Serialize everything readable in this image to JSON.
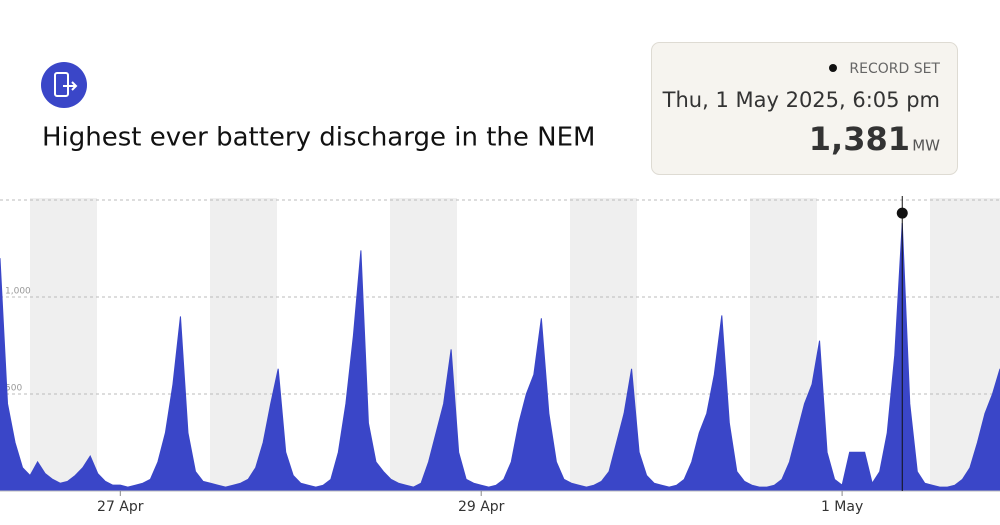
{
  "header": {
    "title": "Highest ever battery discharge in the NEM"
  },
  "card": {
    "label": "RECORD SET",
    "datetime": "Thu, 1 May 2025, 6:05 pm",
    "value": "1,381",
    "unit": "MW"
  },
  "chart_data": {
    "type": "area",
    "color": "#3a46c8",
    "x": [
      0,
      1,
      2,
      3,
      4,
      5,
      6,
      7,
      8,
      9,
      10,
      11,
      12,
      13,
      14,
      15,
      16,
      17,
      18,
      19,
      20,
      21,
      22,
      23,
      24,
      25,
      26,
      27,
      28,
      29,
      30,
      31,
      32,
      33,
      34,
      35,
      36,
      37,
      38,
      39,
      40,
      41,
      42,
      43,
      44,
      45,
      46,
      47,
      48,
      49,
      50,
      51,
      52,
      53,
      54,
      55,
      56,
      57,
      58,
      59,
      60,
      61,
      62,
      63,
      64,
      65,
      66,
      67,
      68,
      69,
      70,
      71,
      72,
      73,
      74,
      75,
      76,
      77,
      78,
      79,
      80,
      81,
      82,
      83,
      84,
      85,
      86,
      87,
      88,
      89,
      90,
      91,
      92,
      93,
      94,
      95,
      96,
      97,
      98,
      99,
      100,
      101,
      102,
      103,
      104,
      105,
      106,
      107,
      108,
      109,
      110,
      111,
      112,
      113,
      114,
      115,
      116,
      117,
      118,
      119,
      120,
      121,
      122,
      123,
      124,
      125,
      126,
      127,
      128,
      129,
      130,
      131,
      132,
      133
    ],
    "values": [
      1200,
      450,
      250,
      120,
      80,
      150,
      90,
      60,
      40,
      50,
      80,
      120,
      180,
      90,
      50,
      30,
      30,
      20,
      30,
      40,
      60,
      150,
      300,
      550,
      900,
      300,
      100,
      50,
      40,
      30,
      20,
      30,
      40,
      60,
      120,
      250,
      450,
      630,
      200,
      80,
      40,
      30,
      20,
      30,
      60,
      200,
      450,
      800,
      1240,
      350,
      150,
      100,
      60,
      40,
      30,
      20,
      40,
      150,
      300,
      450,
      730,
      200,
      60,
      40,
      30,
      20,
      30,
      60,
      150,
      350,
      500,
      600,
      890,
      400,
      150,
      60,
      40,
      30,
      20,
      30,
      50,
      100,
      250,
      400,
      630,
      200,
      80,
      40,
      30,
      20,
      30,
      60,
      150,
      300,
      400,
      600,
      905,
      350,
      100,
      50,
      30,
      20,
      20,
      30,
      60,
      150,
      300,
      450,
      550,
      775,
      200,
      60,
      30,
      200,
      200,
      200,
      40,
      100,
      300,
      700,
      1381,
      450,
      100,
      40,
      30,
      20,
      20,
      30,
      60,
      120,
      250,
      400,
      500,
      630
    ],
    "record_index": 120,
    "xlim": [
      0,
      133
    ],
    "xticks": [
      {
        "value": 16,
        "label": "27 Apr"
      },
      {
        "value": 64,
        "label": "29 Apr"
      },
      {
        "value": 112,
        "label": "1 May"
      }
    ],
    "ylim": [
      0,
      1500
    ],
    "yticks": [
      500,
      {
        "value": 1000,
        "label": "1,000"
      }
    ],
    "grid": true
  }
}
